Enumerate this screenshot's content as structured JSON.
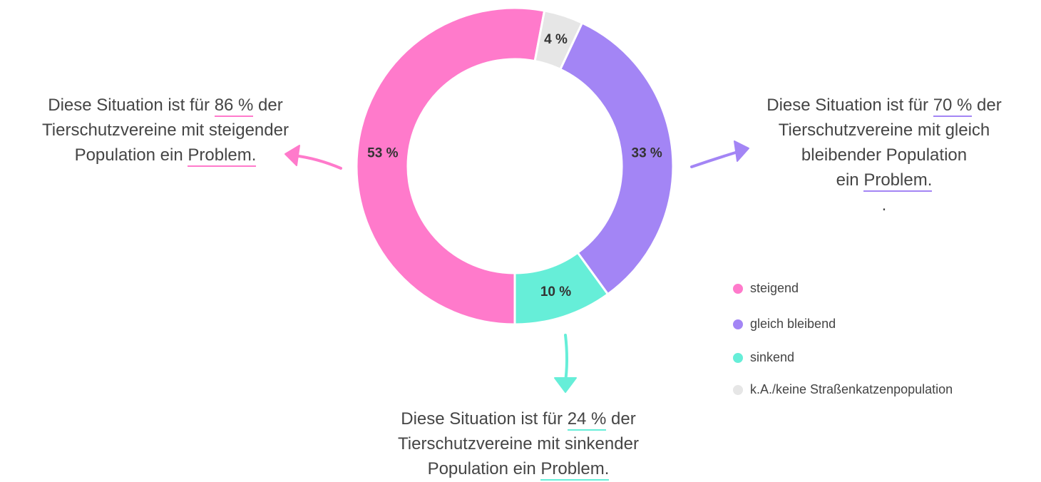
{
  "chart_data": {
    "type": "donut",
    "categories": [
      "steigend",
      "gleich bleibend",
      "sinkend",
      "k.A./keine Straßenkatzenpopulation"
    ],
    "values": [
      53,
      33,
      10,
      4
    ],
    "value_labels": [
      "53 %",
      "33 %",
      "10 %",
      "4 %"
    ],
    "colors": [
      "#ff7acb",
      "#a385f5",
      "#66eed8",
      "#e6e6e6"
    ],
    "annotations": [
      {
        "lines": [
          [
            "Diese Situation ist für ",
            "86 %",
            " der"
          ],
          [
            "Tierschutzvereine mit steigender"
          ],
          [
            "Population ein ",
            "Problem."
          ]
        ]
      },
      {
        "lines": [
          [
            "Diese Situation ist für ",
            "70 %",
            " der"
          ],
          [
            "Tierschutzvereine mit gleich"
          ],
          [
            "bleibender Population"
          ],
          [
            "ein ",
            "Problem."
          ],
          [
            "."
          ]
        ]
      },
      {
        "lines": [
          [
            "Diese Situation ist für ",
            "24 %",
            " der"
          ],
          [
            "Tierschutzvereine mit sinkender"
          ],
          [
            "Population ein ",
            "Problem."
          ]
        ]
      }
    ]
  }
}
